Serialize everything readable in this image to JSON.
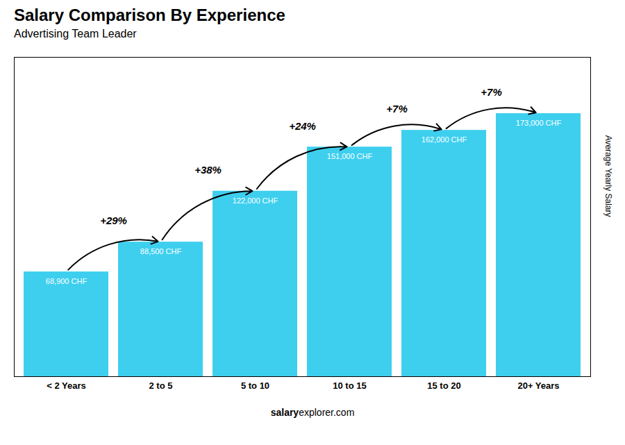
{
  "chart_data": {
    "type": "bar",
    "title": "Salary Comparison By Experience",
    "subtitle": "Advertising Team Leader",
    "categories": [
      "< 2 Years",
      "2 to 5",
      "5 to 10",
      "10 to 15",
      "15 to 20",
      "20+ Years"
    ],
    "values": [
      68900,
      88500,
      122000,
      151000,
      162000,
      173000
    ],
    "value_labels": [
      "68,900 CHF",
      "88,500 CHF",
      "122,000 CHF",
      "151,000 CHF",
      "162,000 CHF",
      "173,000 CHF"
    ],
    "data_labels": true,
    "color": "#3ecfef",
    "ylabel": "Average Yearly Salary",
    "ylim": [
      0,
      210000
    ],
    "tick_labels": "x",
    "grid": false,
    "annotations": [
      {
        "text": "+29%",
        "from": "< 2 Years",
        "to": "2 to 5"
      },
      {
        "text": "+38%",
        "from": "2 to 5",
        "to": "5 to 10"
      },
      {
        "text": "+24%",
        "from": "5 to 10",
        "to": "10 to 15"
      },
      {
        "text": "+7%",
        "from": "10 to 15",
        "to": "15 to 20"
      },
      {
        "text": "+7%",
        "from": "15 to 20",
        "to": "20+ Years"
      }
    ],
    "footer": [
      "salary",
      "explorer.com"
    ]
  }
}
